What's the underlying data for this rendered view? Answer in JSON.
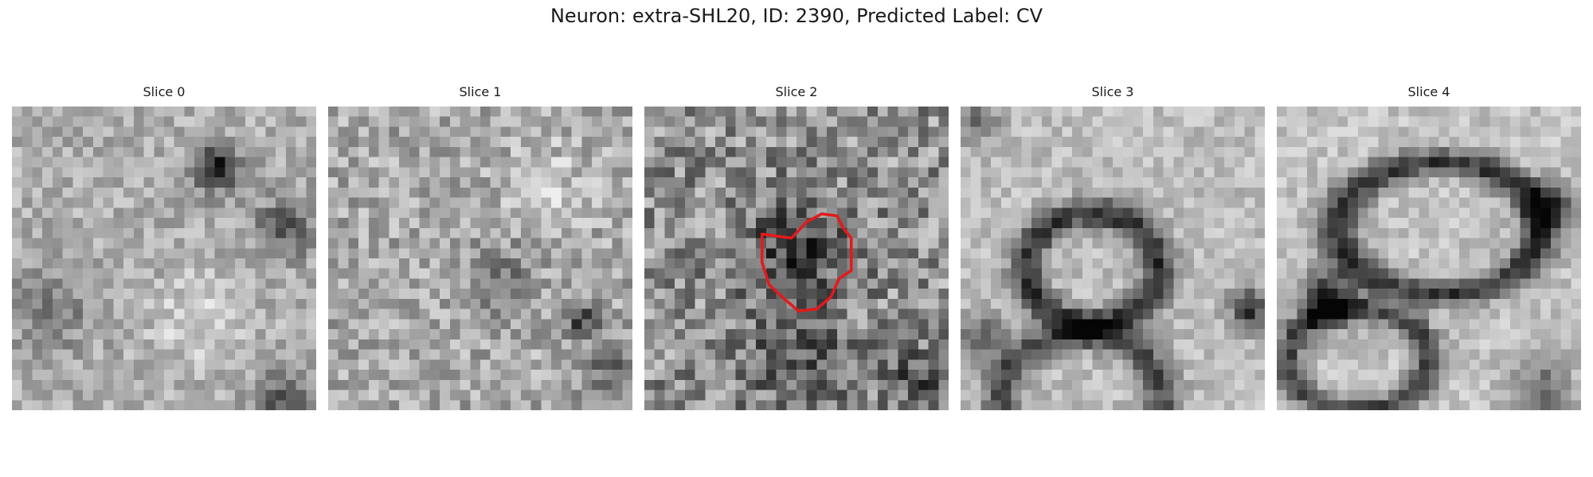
{
  "figure": {
    "title": "Neuron: extra-SHL20, ID: 2390, Predicted Label: CV"
  },
  "panels": [
    {
      "title": "Slice 0",
      "has_contour": false
    },
    {
      "title": "Slice 1",
      "has_contour": false
    },
    {
      "title": "Slice 2",
      "has_contour": true
    },
    {
      "title": "Slice 3",
      "has_contour": false
    },
    {
      "title": "Slice 4",
      "has_contour": false
    }
  ],
  "image_style": {
    "colormap": "grayscale",
    "contour_color": "#e31a1c"
  }
}
